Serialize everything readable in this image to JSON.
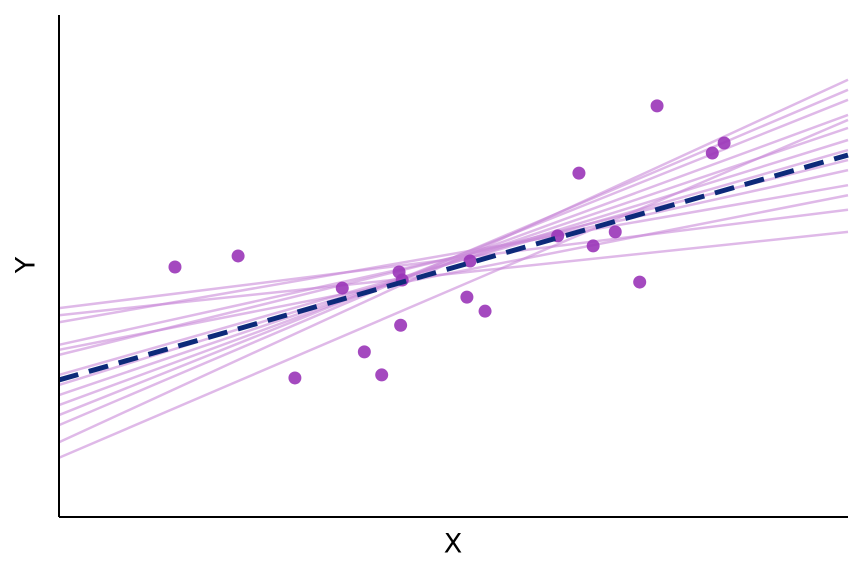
{
  "chart_data": {
    "type": "scatter",
    "x_label": "X",
    "y_label": "Y",
    "xlim": [
      0,
      100
    ],
    "ylim": [
      0,
      100
    ],
    "x": [
      14.7,
      22.7,
      29.9,
      35.9,
      38.7,
      40.9,
      43.1,
      43.5,
      43.3,
      51.7,
      52.1,
      54.0,
      63.2,
      65.9,
      67.7,
      70.5,
      73.6,
      75.8,
      82.8,
      84.3
    ],
    "values": [
      49.8,
      52.0,
      27.7,
      45.6,
      32.9,
      28.3,
      48.8,
      47.2,
      38.2,
      43.8,
      51.0,
      41.0,
      56.0,
      68.5,
      54.0,
      56.8,
      46.8,
      81.9,
      72.5,
      74.5
    ],
    "color": "#9a35b8",
    "lines": [
      {
        "values": [
          41.6,
          61.2
        ],
        "color": "#c98ad9"
      },
      {
        "values": [
          40.2,
          56.8
        ],
        "color": "#c98ad9"
      },
      {
        "values": [
          38.8,
          66.1
        ],
        "color": "#c98ad9"
      },
      {
        "values": [
          34.3,
          69.1
        ],
        "color": "#c98ad9"
      },
      {
        "values": [
          32.3,
          71.1
        ],
        "color": "#c98ad9"
      },
      {
        "values": [
          28.3,
          73.1
        ],
        "color": "#c98ad9"
      },
      {
        "values": [
          26.3,
          75.1
        ],
        "color": "#c98ad9"
      },
      {
        "values": [
          24.3,
          77.5
        ],
        "color": "#c98ad9"
      },
      {
        "values": [
          22.3,
          80.1
        ],
        "color": "#c98ad9"
      },
      {
        "values": [
          20.3,
          83.1
        ],
        "color": "#c98ad9"
      },
      {
        "values": [
          18.3,
          85.1
        ],
        "color": "#c98ad9"
      },
      {
        "values": [
          14.9,
          87.1
        ],
        "color": "#c98ad9"
      },
      {
        "values": [
          11.8,
          79.1
        ],
        "color": "#c98ad9"
      },
      {
        "values": [
          33.3,
          64.1
        ],
        "color": "#c98ad9"
      }
    ],
    "fit": {
      "values": [
        27.3,
        72.1
      ],
      "color": "#0d2a7a",
      "dashed": true
    }
  }
}
